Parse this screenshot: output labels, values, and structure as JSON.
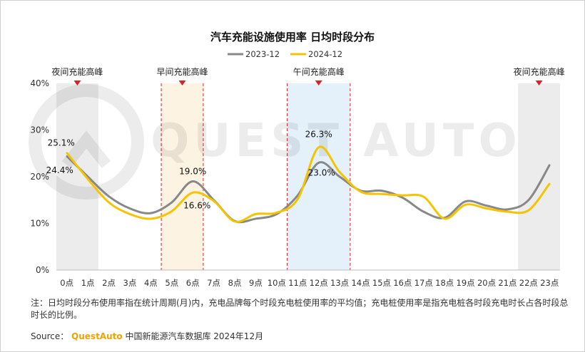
{
  "chart_data": {
    "type": "line",
    "title": "汽车充能设施使用率 日均时段分布",
    "categories": [
      "0点",
      "1点",
      "2点",
      "3点",
      "4点",
      "5点",
      "6点",
      "7点",
      "8点",
      "9点",
      "10点",
      "11点",
      "12点",
      "13点",
      "14点",
      "15点",
      "16点",
      "17点",
      "18点",
      "19点",
      "20点",
      "21点",
      "22点",
      "23点"
    ],
    "series": [
      {
        "name": "2023-12",
        "color": "#888888",
        "values": [
          24.4,
          20.0,
          15.8,
          13.2,
          12.2,
          14.5,
          19.0,
          15.0,
          10.5,
          11.0,
          12.0,
          16.0,
          23.0,
          20.0,
          17.0,
          17.0,
          15.5,
          12.5,
          11.2,
          14.7,
          13.8,
          13.0,
          15.0,
          22.5
        ]
      },
      {
        "name": "2024-12",
        "color": "#f5c400",
        "values": [
          25.1,
          19.5,
          14.5,
          12.0,
          11.0,
          12.6,
          16.6,
          14.8,
          10.4,
          12.0,
          12.3,
          15.2,
          26.3,
          21.0,
          16.8,
          16.3,
          16.0,
          15.7,
          11.0,
          14.0,
          13.2,
          12.5,
          12.8,
          18.5
        ]
      }
    ],
    "ylim": [
      0,
      40
    ],
    "yticks": [
      "0%",
      "10%",
      "20%",
      "30%",
      "40%"
    ],
    "data_labels": [
      {
        "series": "2023-12",
        "x": "0点",
        "text": "24.4%"
      },
      {
        "series": "2024-12",
        "x": "0点",
        "text": "25.1%"
      },
      {
        "series": "2023-12",
        "x": "6点",
        "text": "19.0%"
      },
      {
        "series": "2024-12",
        "x": "6点",
        "text": "16.6%"
      },
      {
        "series": "2024-12",
        "x": "12点",
        "text": "26.3%"
      },
      {
        "series": "2023-12",
        "x": "12点",
        "text": "23.0%"
      }
    ],
    "peaks": [
      {
        "label": "夜间充能高峰",
        "range": [
          "0点",
          "1点"
        ],
        "style": "gray"
      },
      {
        "label": "早间充能高峰",
        "range": [
          "5点",
          "6点"
        ],
        "style": "beige"
      },
      {
        "label": "午间充能高峰",
        "range": [
          "11点",
          "13点"
        ],
        "style": "blue"
      },
      {
        "label": "夜间充能高峰",
        "range": [
          "22点",
          "23点"
        ],
        "style": "gray"
      }
    ],
    "legend": "top-center"
  },
  "colors": {
    "gray_band": "#ececec",
    "beige_band": "#fdf3e3",
    "blue_band": "#e4f1fb",
    "peak_marker": "#e02020",
    "dash": "#e02020"
  },
  "watermark": "QUEST AUTO",
  "note": "注：日均时段分布使用率指在统计周期(月)内，充电品牌每个时段充电桩使用率的平均值；充电桩使用率是指充电桩各时段充电时长占各时段总时长的比例。",
  "source": {
    "label": "Source：",
    "brand": "QuestAuto",
    "text": "中国新能源汽车数据库 2024年12月"
  }
}
